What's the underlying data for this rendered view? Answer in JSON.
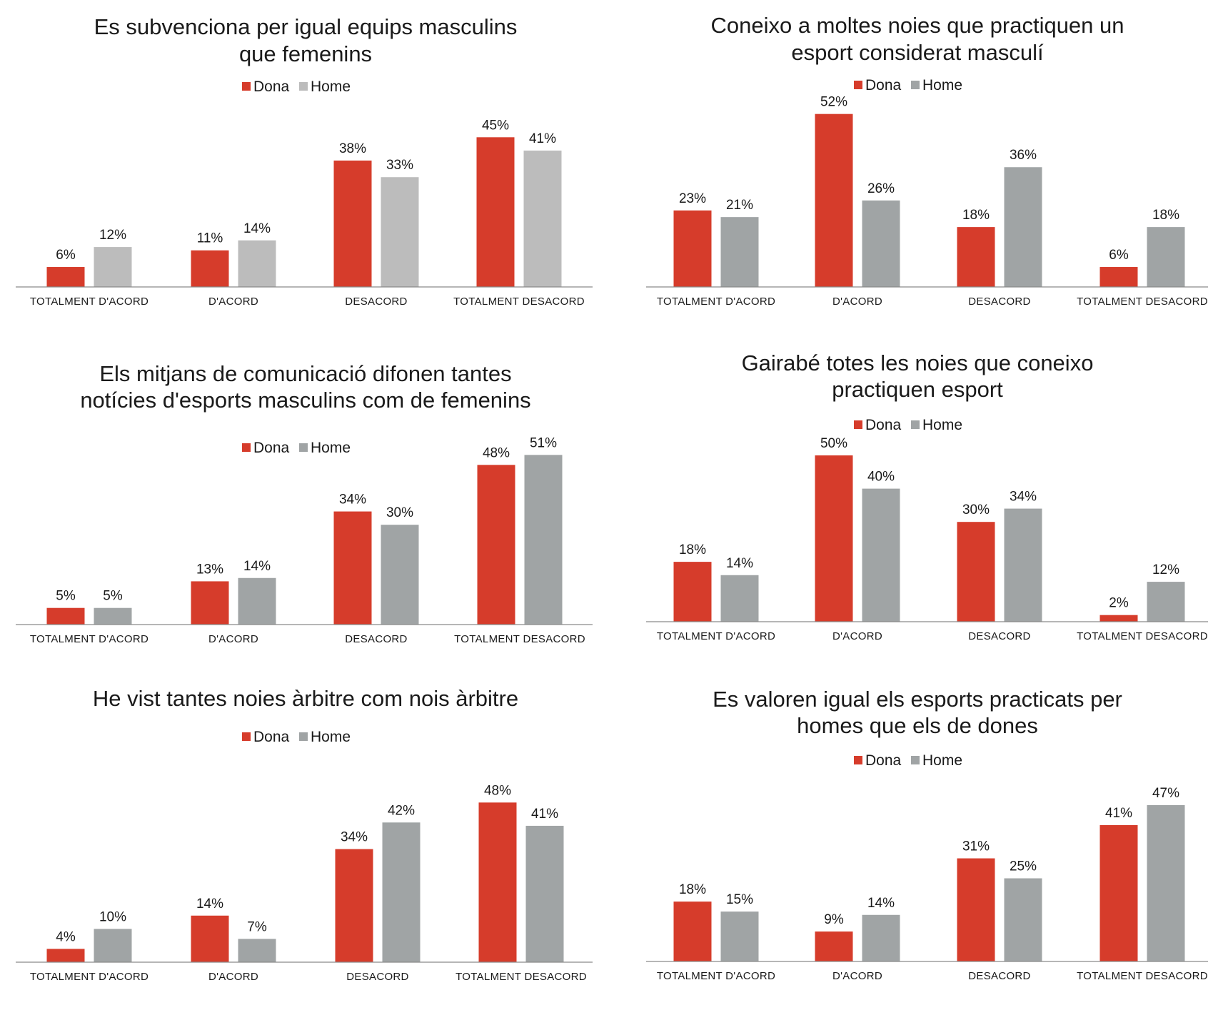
{
  "colors": {
    "dona": "#d63c2b",
    "home_light": "#bcbcbc",
    "home": "#a0a4a5",
    "axis": "#8a8a8a"
  },
  "chart_data": [
    {
      "type": "bar",
      "title": [
        "Es subvenciona per igual equips masculins",
        "que femenins"
      ],
      "categories": [
        "TOTALMENT D'ACORD",
        "D'ACORD",
        "DESACORD",
        "TOTALMENT DESACORD"
      ],
      "series": [
        {
          "name": "Dona",
          "color": "#d63c2b",
          "values": [
            6,
            11,
            38,
            45
          ],
          "labels": [
            "6%",
            "11%",
            "38%",
            "45%"
          ]
        },
        {
          "name": "Home",
          "color": "#bcbcbc",
          "values": [
            12,
            14,
            33,
            41
          ],
          "labels": [
            "12%",
            "14%",
            "33%",
            "41%"
          ]
        }
      ],
      "ylim": [
        0,
        52
      ],
      "legend": "top-center",
      "grid": false
    },
    {
      "type": "bar",
      "title": [
        "Coneixo a moltes noies que practiquen un",
        "esport considerat masculí"
      ],
      "categories": [
        "TOTALMENT D'ACORD",
        "D'ACORD",
        "DESACORD",
        "TOTALMENT DESACORD"
      ],
      "series": [
        {
          "name": "Dona",
          "color": "#d63c2b",
          "values": [
            23,
            52,
            18,
            6
          ],
          "labels": [
            "23%",
            "52%",
            "18%",
            "6%"
          ]
        },
        {
          "name": "Home",
          "color": "#a0a4a5",
          "values": [
            21,
            26,
            36,
            18
          ],
          "labels": [
            "21%",
            "26%",
            "36%",
            "18%"
          ]
        }
      ],
      "ylim": [
        0,
        57
      ],
      "legend": "top-center",
      "grid": false
    },
    {
      "type": "bar",
      "title": [
        "Els mitjans de comunicació difonen tantes",
        "notícies d'esports masculins com de femenins"
      ],
      "categories": [
        "TOTALMENT D'ACORD",
        "D'ACORD",
        "DESACORD",
        "TOTALMENT DESACORD"
      ],
      "series": [
        {
          "name": "Dona",
          "color": "#d63c2b",
          "values": [
            5,
            13,
            34,
            48
          ],
          "labels": [
            "5%",
            "13%",
            "34%",
            "48%"
          ]
        },
        {
          "name": "Home",
          "color": "#a0a4a5",
          "values": [
            5,
            14,
            30,
            51
          ],
          "labels": [
            "5%",
            "14%",
            "30%",
            "51%"
          ]
        }
      ],
      "ylim": [
        0,
        57
      ],
      "legend": "top-center",
      "grid": false
    },
    {
      "type": "bar",
      "title": [
        "Gairabé totes les noies que coneixo",
        "practiquen esport"
      ],
      "categories": [
        "TOTALMENT D'ACORD",
        "D'ACORD",
        "DESACORD",
        "TOTALMENT DESACORD"
      ],
      "series": [
        {
          "name": "Dona",
          "color": "#d63c2b",
          "values": [
            18,
            50,
            30,
            2
          ],
          "labels": [
            "18%",
            "50%",
            "30%",
            "2%"
          ]
        },
        {
          "name": "Home",
          "color": "#a0a4a5",
          "values": [
            14,
            40,
            34,
            12
          ],
          "labels": [
            "14%",
            "40%",
            "34%",
            "12%"
          ]
        }
      ],
      "ylim": [
        0,
        57
      ],
      "legend": "top-center",
      "grid": false
    },
    {
      "type": "bar",
      "title": [
        "He vist tantes noies àrbitre com nois àrbitre"
      ],
      "categories": [
        "TOTALMENT D'ACORD",
        "D'ACORD",
        "DESACORD",
        "TOTALMENT DESACORD"
      ],
      "series": [
        {
          "name": "Dona",
          "color": "#d63c2b",
          "values": [
            4,
            14,
            34,
            48
          ],
          "labels": [
            "4%",
            "14%",
            "34%",
            "48%"
          ]
        },
        {
          "name": "Home",
          "color": "#a0a4a5",
          "values": [
            10,
            7,
            42,
            41
          ],
          "labels": [
            "10%",
            "7%",
            "42%",
            "41%"
          ]
        }
      ],
      "ylim": [
        0,
        56
      ],
      "legend": "top-center",
      "grid": false
    },
    {
      "type": "bar",
      "title": [
        "Es valoren igual els esports practicats per",
        "homes que els de dones"
      ],
      "categories": [
        "TOTALMENT D'ACORD",
        "D'ACORD",
        "DESACORD",
        "TOTALMENT DESACORD"
      ],
      "series": [
        {
          "name": "Dona",
          "color": "#d63c2b",
          "values": [
            18,
            9,
            31,
            41
          ],
          "labels": [
            "18%",
            "9%",
            "31%",
            "41%"
          ]
        },
        {
          "name": "Home",
          "color": "#a0a4a5",
          "values": [
            15,
            14,
            25,
            47
          ],
          "labels": [
            "15%",
            "14%",
            "25%",
            "47%"
          ]
        }
      ],
      "ylim": [
        0,
        57
      ],
      "legend": "top-center",
      "grid": false
    }
  ]
}
